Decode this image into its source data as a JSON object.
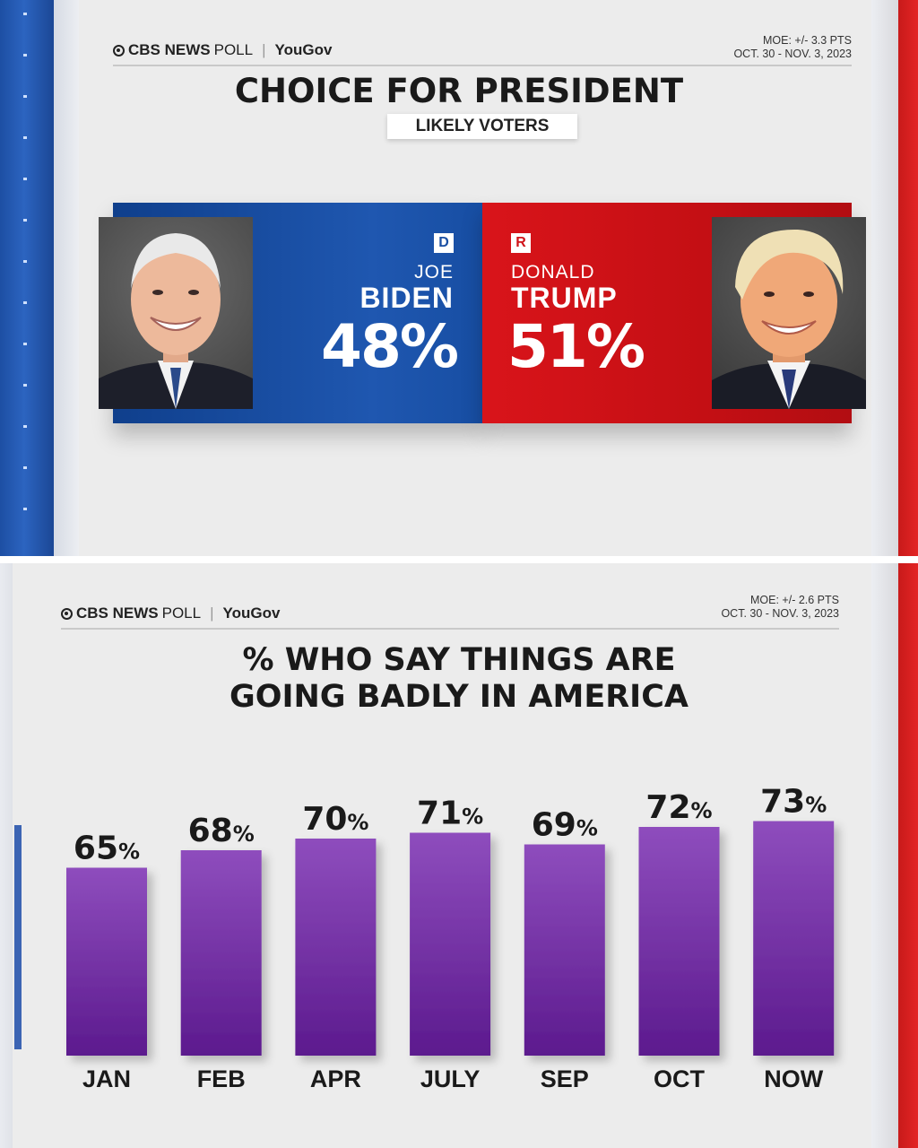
{
  "top_panel": {
    "logo": {
      "brand": "CBS NEWS",
      "word": "POLL",
      "partner": "YouGov"
    },
    "moe": {
      "line1": "MOE: +/- 3.3 PTS",
      "line2": "OCT. 30 - NOV. 3, 2023"
    },
    "title": "CHOICE FOR PRESIDENT",
    "subtitle": "LIKELY VOTERS",
    "candidates": [
      {
        "party": "D",
        "first_name": "JOE",
        "last_name": "BIDEN",
        "pct": "48%",
        "color": "#1a4fa3"
      },
      {
        "party": "R",
        "first_name": "DONALD",
        "last_name": "TRUMP",
        "pct": "51%",
        "color": "#d0141a"
      }
    ]
  },
  "bottom_panel": {
    "logo": {
      "brand": "CBS NEWS",
      "word": "POLL",
      "partner": "YouGov"
    },
    "moe": {
      "line1": "MOE: +/- 2.6 PTS",
      "line2": "OCT. 30 - NOV. 3, 2023"
    },
    "title_line1": "% WHO SAY THINGS ARE",
    "title_line2": "GOING BADLY IN AMERICA"
  },
  "chart_data": [
    {
      "type": "bar",
      "categories": [
        "BIDEN",
        "TRUMP"
      ],
      "values": [
        48,
        51
      ],
      "title": "CHOICE FOR PRESIDENT",
      "subtitle": "LIKELY VOTERS",
      "colors": [
        "#1a4fa3",
        "#d0141a"
      ]
    },
    {
      "type": "bar",
      "categories": [
        "JAN",
        "FEB",
        "APR",
        "JULY",
        "SEP",
        "OCT",
        "NOW"
      ],
      "values": [
        65,
        68,
        70,
        71,
        69,
        72,
        73
      ],
      "value_suffix": "%",
      "title": "% WHO SAY THINGS ARE GOING BADLY IN AMERICA",
      "xlabel": "",
      "ylabel": "",
      "grid": false,
      "colors": {
        "bar_top": "#8e4dbd",
        "bar_bottom": "#5c1a8e"
      }
    }
  ]
}
